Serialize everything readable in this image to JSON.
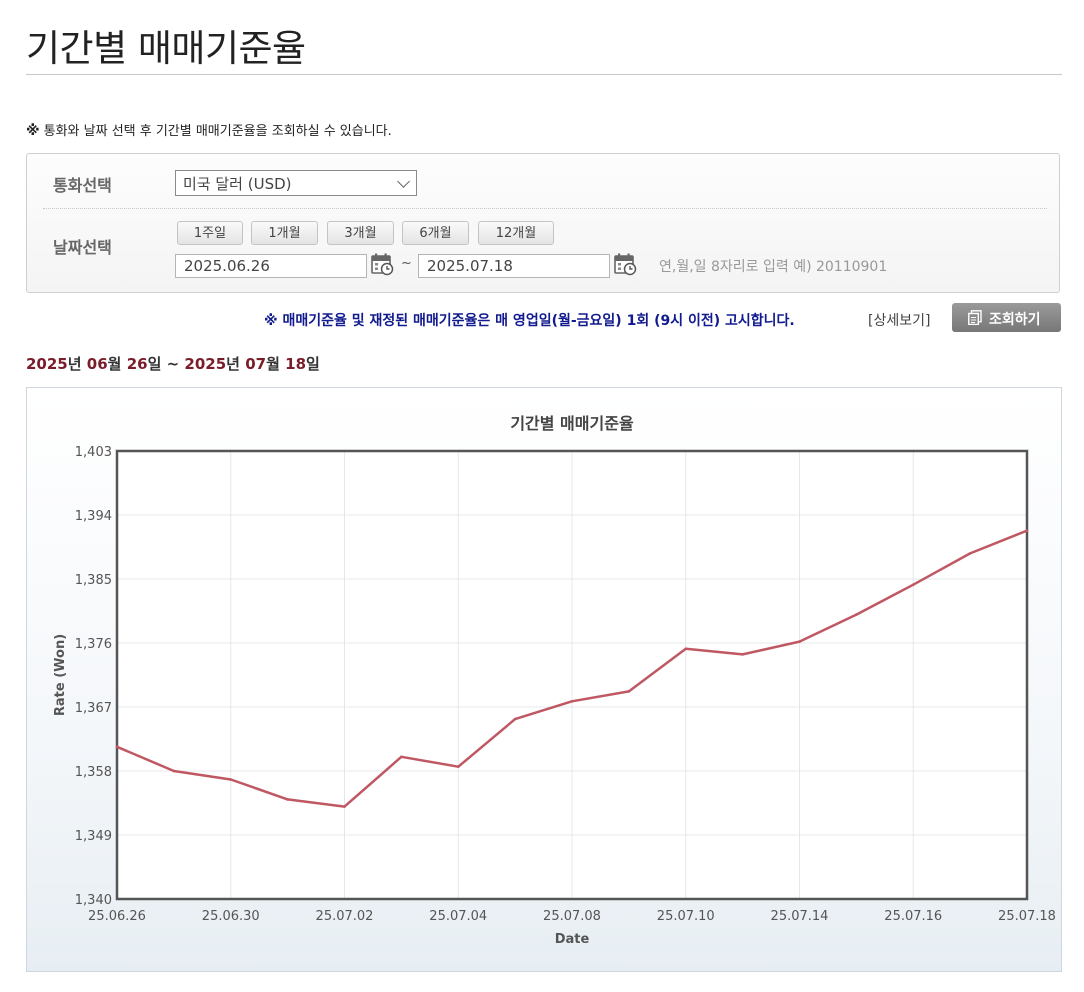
{
  "page": {
    "title": "기간별 매매기준율",
    "notice_mark": "※",
    "notice": "통화와 날짜 선택 후 기간별 매매기준율을 조회하실 수 있습니다."
  },
  "filter": {
    "currency_label": "통화선택",
    "currency_value": "미국 달러 (USD)",
    "date_label": "날짜선택",
    "period_buttons": [
      "1주일",
      "1개월",
      "3개월",
      "6개월",
      "12개월"
    ],
    "start_date": "2025.06.26",
    "end_date": "2025.07.18",
    "tilde": "~",
    "date_hint": "연,월,일 8자리로 입력 예) 20110901"
  },
  "announcement": "※ 매매기준율 및 재정된 매매기준율은 매 영업일(월-금요일) 1회 (9시 이전) 고시합니다.",
  "detail_link": "[상세보기]",
  "search_button": "조회하기",
  "range": {
    "y1": "2025",
    "u1": "년",
    "m1": "06",
    "u2": "월",
    "d1": "26",
    "u3": "일",
    "sep": " ~ ",
    "y2": "2025",
    "u4": "년",
    "m2": "07",
    "u5": "월",
    "d2": "18",
    "u6": "일"
  },
  "colors": {
    "line": "#c05864",
    "announce": "#111a8e",
    "range": "#7a1d2a"
  },
  "icons": {
    "calendar": "calendar-icon",
    "select_caret": "chevron-down-icon",
    "search": "document-icon"
  },
  "chart_data": {
    "type": "line",
    "title": "기간별 매매기준율",
    "xlabel": "Date",
    "ylabel": "Rate (Won)",
    "ylim": [
      1340,
      1403
    ],
    "yticks": [
      1340,
      1349,
      1358,
      1367,
      1376,
      1385,
      1394,
      1403
    ],
    "ytick_labels": [
      "1,340",
      "1,349",
      "1,358",
      "1,367",
      "1,376",
      "1,385",
      "1,394",
      "1,403"
    ],
    "xtick_labels": [
      "25.06.26",
      "25.06.30",
      "25.07.02",
      "25.07.04",
      "25.07.08",
      "25.07.10",
      "25.07.14",
      "25.07.16",
      "25.07.18"
    ],
    "x": [
      "25.06.26",
      "25.06.27",
      "25.06.30",
      "25.07.01",
      "25.07.02",
      "25.07.03",
      "25.07.04",
      "25.07.07",
      "25.07.08",
      "25.07.09",
      "25.07.10",
      "25.07.11",
      "25.07.14",
      "25.07.15",
      "25.07.16",
      "25.07.17",
      "25.07.18"
    ],
    "series": [
      {
        "values": [
          1361.4,
          1358.0,
          1356.8,
          1354.0,
          1353.0,
          1360.0,
          1358.6,
          1365.3,
          1367.8,
          1369.2,
          1375.2,
          1374.4,
          1376.2,
          1380.0,
          1384.2,
          1388.6,
          1391.8
        ]
      }
    ],
    "grid": true,
    "legend": "none"
  }
}
